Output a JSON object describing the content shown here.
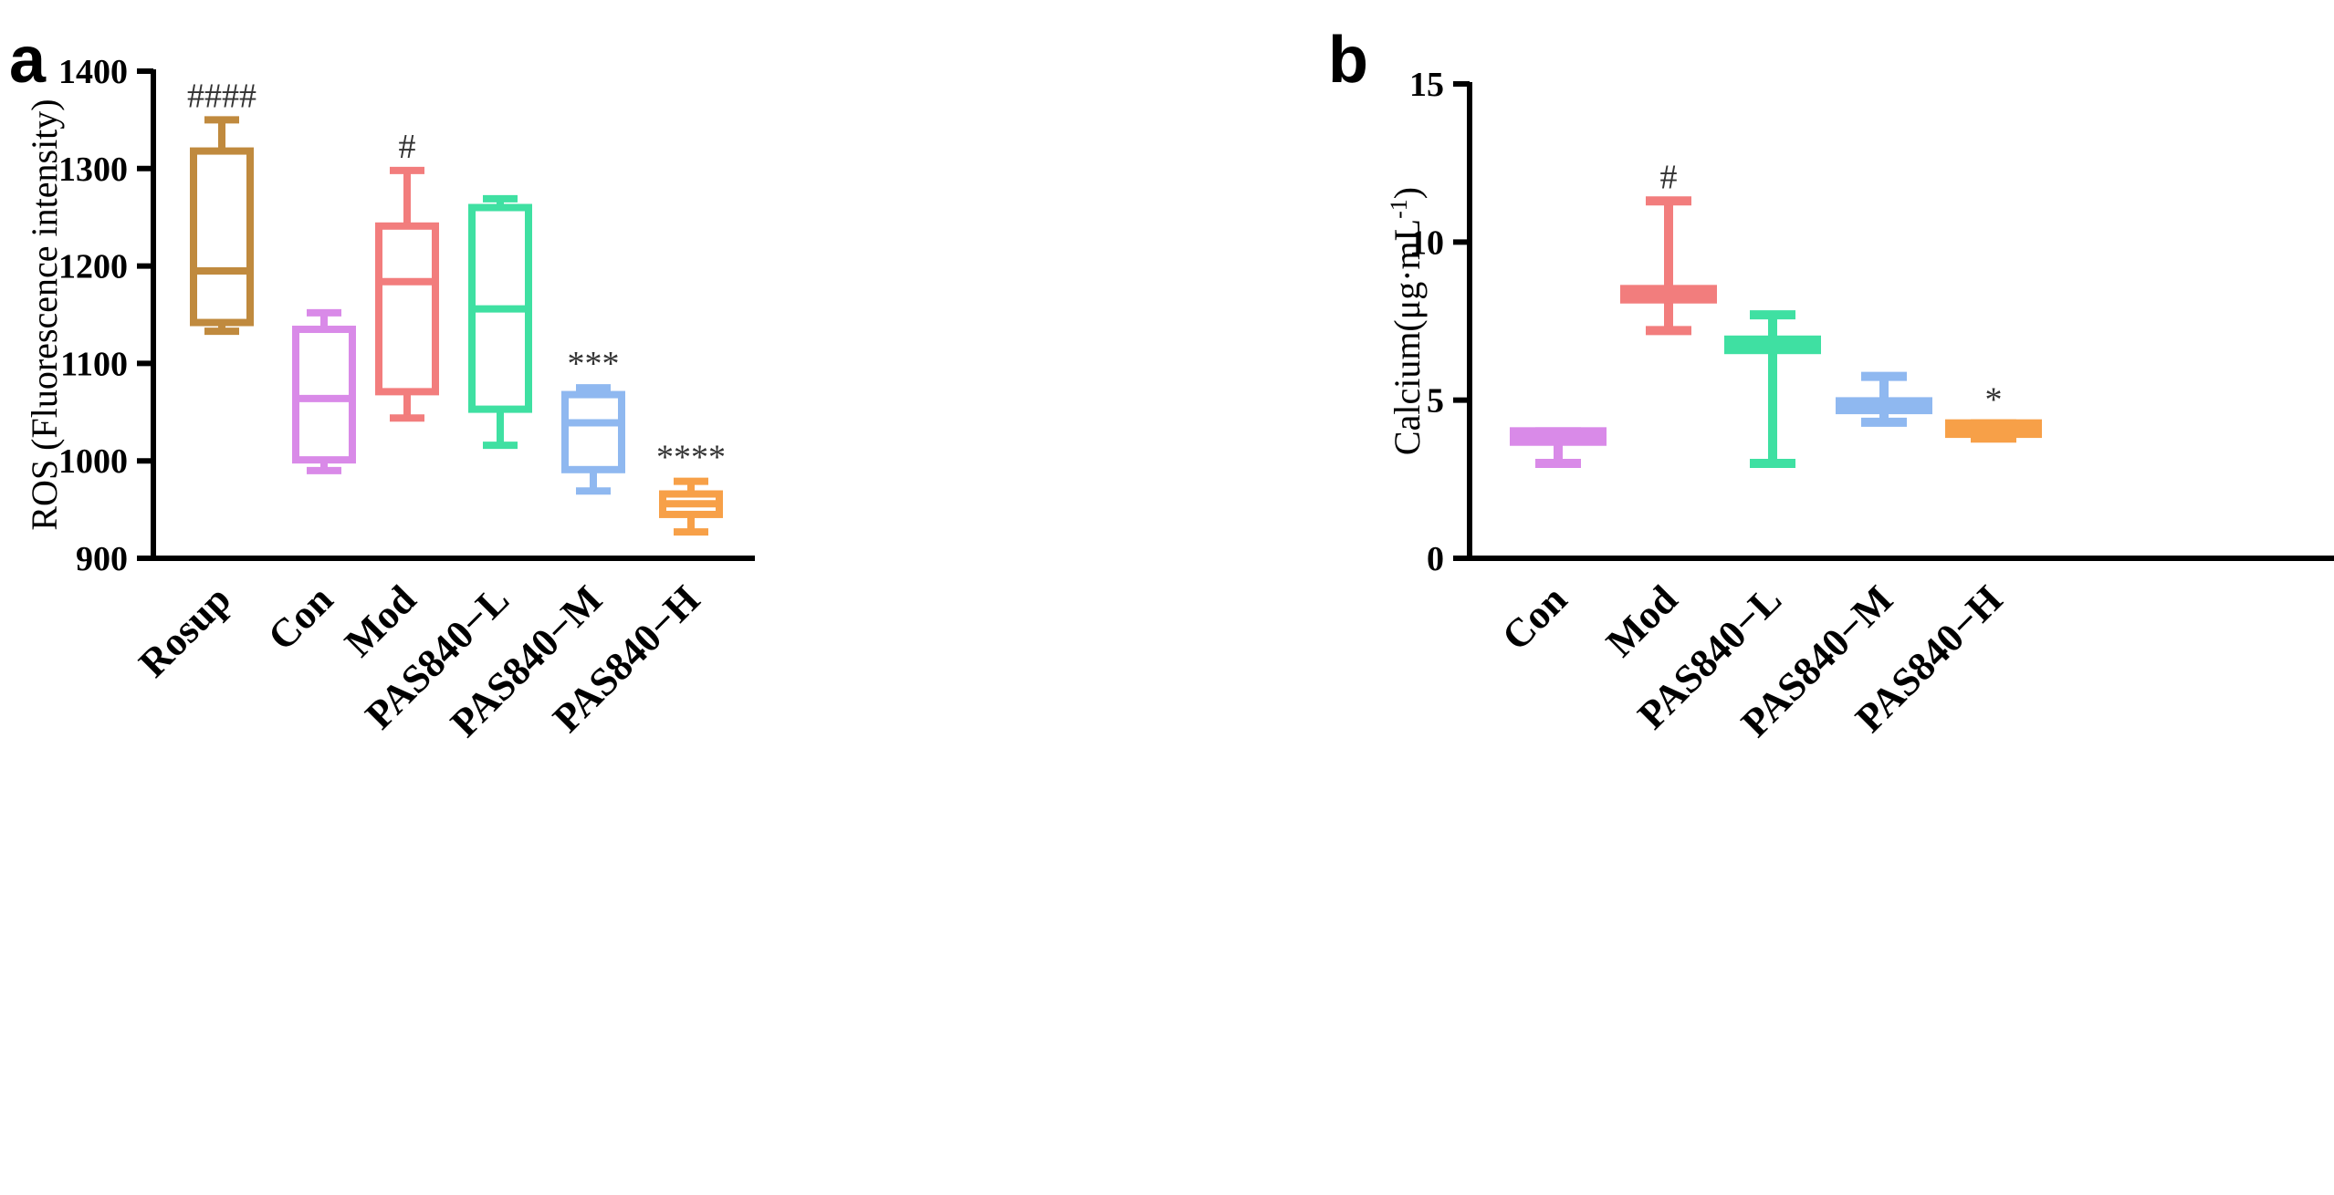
{
  "chart_data": [
    {
      "panel": "a",
      "type": "box",
      "ylabel": "ROS (Fluorescence intensity)",
      "ylim": [
        900,
        1400
      ],
      "yticks": [
        900,
        1000,
        1100,
        1200,
        1300,
        1400
      ],
      "categories": [
        "Rosup",
        "Con",
        "Mod",
        "PAS840−L",
        "PAS840−M",
        "PAS840−H"
      ],
      "colors": [
        "#c08a3e",
        "#d98ae8",
        "#f27d7d",
        "#3fe0a2",
        "#8fb8f0",
        "#f7a048"
      ],
      "boxes": [
        {
          "min": 1133,
          "q1": 1142,
          "median": 1195,
          "q3": 1318,
          "max": 1350,
          "annotation": "####"
        },
        {
          "min": 990,
          "q1": 1001,
          "median": 1064,
          "q3": 1135,
          "max": 1152,
          "annotation": ""
        },
        {
          "min": 1044,
          "q1": 1071,
          "median": 1184,
          "q3": 1241,
          "max": 1298,
          "annotation": "#"
        },
        {
          "min": 1016,
          "q1": 1053,
          "median": 1156,
          "q3": 1260,
          "max": 1269,
          "annotation": ""
        },
        {
          "min": 969,
          "q1": 991,
          "median": 1039,
          "q3": 1068,
          "max": 1075,
          "annotation": "***"
        },
        {
          "min": 927,
          "q1": 945,
          "median": 956,
          "q3": 966,
          "max": 979,
          "annotation": "****"
        }
      ]
    },
    {
      "panel": "b",
      "type": "box",
      "ylabel": "Calcium(μg·mL",
      "ylabel_sup": "-1",
      "ylabel_end": ")",
      "ylim": [
        0,
        15
      ],
      "yticks": [
        0,
        5,
        10,
        15
      ],
      "categories": [
        "Con",
        "Mod",
        "PAS840−L",
        "PAS840−M",
        "PAS840−H"
      ],
      "colors": [
        "#d98ae8",
        "#f27d7d",
        "#3fe0a2",
        "#8fb8f0",
        "#f7a048"
      ],
      "boxes": [
        {
          "min": 3.0,
          "q1": 3.7,
          "median": 3.85,
          "q3": 4.0,
          "max": 4.0,
          "annotation": ""
        },
        {
          "min": 7.2,
          "q1": 8.2,
          "median": 8.35,
          "q3": 8.5,
          "max": 11.3,
          "annotation": "#"
        },
        {
          "min": 3.0,
          "q1": 6.6,
          "median": 6.75,
          "q3": 6.9,
          "max": 7.7,
          "annotation": ""
        },
        {
          "min": 4.3,
          "q1": 4.7,
          "median": 4.8,
          "q3": 4.95,
          "max": 5.75,
          "annotation": ""
        },
        {
          "min": 3.8,
          "q1": 3.95,
          "median": 4.05,
          "q3": 4.25,
          "max": 4.25,
          "annotation": "*"
        }
      ]
    }
  ]
}
